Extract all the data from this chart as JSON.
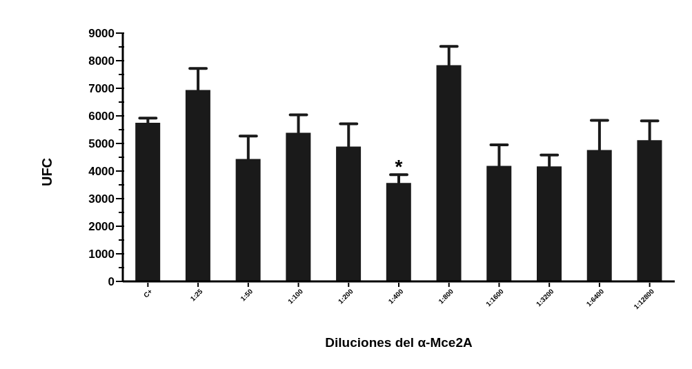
{
  "chart_data": {
    "type": "bar",
    "xlabel": "Diluciones del α-Mce2A",
    "ylabel": "UFC",
    "categories": [
      "C+",
      "1:25",
      "1:50",
      "1:100",
      "1:200",
      "1:400",
      "1:800",
      "1:1600",
      "1:3200",
      "1:6400",
      "1:12800"
    ],
    "values": [
      5750,
      6940,
      4440,
      5390,
      4890,
      3570,
      7840,
      4190,
      4170,
      4760,
      5120
    ],
    "errors": [
      [
        5750,
        5920
      ],
      [
        6940,
        7720
      ],
      [
        4440,
        5270
      ],
      [
        5390,
        6040
      ],
      [
        4890,
        5710
      ],
      [
        3570,
        3870
      ],
      [
        7840,
        8520
      ],
      [
        4190,
        4950
      ],
      [
        4170,
        4580
      ],
      [
        4760,
        5840
      ],
      [
        5120,
        5820
      ]
    ],
    "color": "#1a1a1a",
    "ylim": [
      0,
      9000
    ],
    "yticks": [
      0,
      {
        "value": 500,
        "label": null
      },
      1000,
      {
        "value": 1500,
        "label": null
      },
      2000,
      {
        "value": 2500,
        "label": null
      },
      3000,
      {
        "value": 3500,
        "label": null
      },
      4000,
      {
        "value": 4500,
        "label": null
      },
      5000,
      {
        "value": 5500,
        "label": null
      },
      6000,
      {
        "value": 6500,
        "label": null
      },
      7000,
      {
        "value": 7500,
        "label": null
      },
      8000,
      {
        "value": 8500,
        "label": null
      },
      9000
    ],
    "annotations": [
      {
        "text": "*",
        "x": "1:400",
        "y": 3870
      }
    ],
    "grid": false,
    "legend": false
  }
}
